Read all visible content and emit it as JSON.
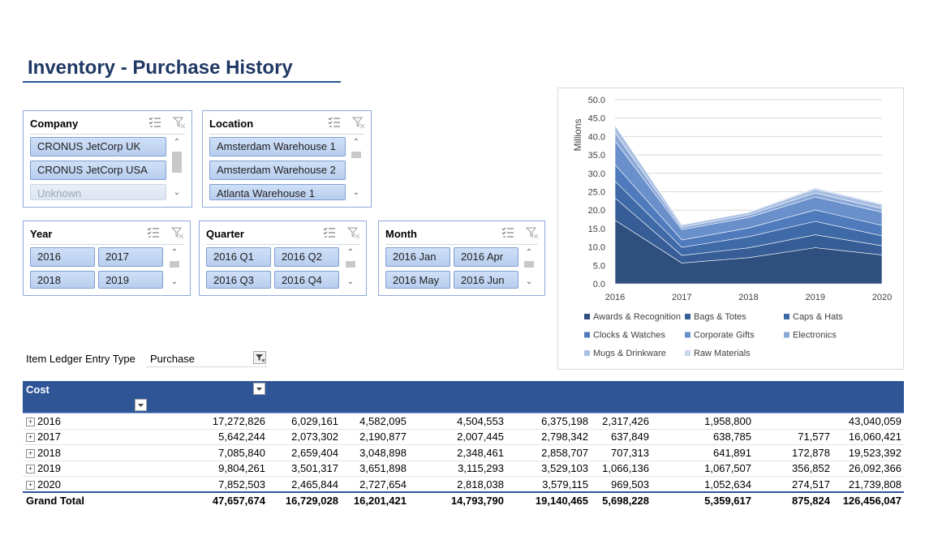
{
  "page_title": "Inventory - Purchase History",
  "slicers": {
    "company": {
      "title": "Company",
      "items": [
        "CRONUS JetCorp UK",
        "CRONUS JetCorp USA",
        "Unknown"
      ]
    },
    "location": {
      "title": "Location",
      "items": [
        "Amsterdam Warehouse 1",
        "Amsterdam Warehouse 2",
        "Atlanta Warehouse 1"
      ]
    },
    "year": {
      "title": "Year",
      "items": [
        "2016",
        "2017",
        "2018",
        "2019"
      ]
    },
    "quarter": {
      "title": "Quarter",
      "items": [
        "2016 Q1",
        "2016 Q2",
        "2016 Q3",
        "2016 Q4"
      ]
    },
    "month": {
      "title": "Month",
      "items": [
        "2016 Jan",
        "2016 Apr",
        "2016 May",
        "2016 Jun"
      ]
    }
  },
  "filter": {
    "label": "Item Ledger Entry Type",
    "value": "Purchase"
  },
  "pivot": {
    "header_label": "Cost",
    "columns": [
      "Awards & Recognition",
      "Bags & Totes",
      "Caps & Hats",
      "Clocks & Watches",
      "Corporate Gifts",
      "Electronics",
      "Mugs & Drinkware",
      "Raw Materials",
      "Grand Total"
    ],
    "rows": [
      {
        "label": "2016",
        "values": [
          "17,272,826",
          "6,029,161",
          "4,582,095",
          "4,504,553",
          "6,375,198",
          "2,317,426",
          "1,958,800",
          "",
          "43,040,059"
        ]
      },
      {
        "label": "2017",
        "values": [
          "5,642,244",
          "2,073,302",
          "2,190,877",
          "2,007,445",
          "2,798,342",
          "637,849",
          "638,785",
          "71,577",
          "16,060,421"
        ]
      },
      {
        "label": "2018",
        "values": [
          "7,085,840",
          "2,659,404",
          "3,048,898",
          "2,348,461",
          "2,858,707",
          "707,313",
          "641,891",
          "172,878",
          "19,523,392"
        ]
      },
      {
        "label": "2019",
        "values": [
          "9,804,261",
          "3,501,317",
          "3,651,898",
          "3,115,293",
          "3,529,103",
          "1,066,136",
          "1,067,507",
          "356,852",
          "26,092,366"
        ]
      },
      {
        "label": "2020",
        "values": [
          "7,852,503",
          "2,465,844",
          "2,727,654",
          "2,818,038",
          "3,579,115",
          "969,503",
          "1,052,634",
          "274,517",
          "21,739,808"
        ]
      }
    ],
    "grand_total": {
      "label": "Grand Total",
      "values": [
        "47,657,674",
        "16,729,028",
        "16,201,421",
        "14,793,790",
        "19,140,465",
        "5,698,228",
        "5,359,617",
        "875,824",
        "126,456,047"
      ]
    }
  },
  "chart_data": {
    "type": "area",
    "stacked": true,
    "x": [
      "2016",
      "2017",
      "2018",
      "2019",
      "2020"
    ],
    "ylabel": "Millions",
    "ylim": [
      0,
      50
    ],
    "yticks": [
      "0.0",
      "5.0",
      "10.0",
      "15.0",
      "20.0",
      "25.0",
      "30.0",
      "35.0",
      "40.0",
      "45.0",
      "50.0"
    ],
    "legend_position": "bottom",
    "grid": true,
    "series": [
      {
        "name": "Awards & Recognition",
        "color": "#2f4f7f",
        "values": [
          17.27,
          5.64,
          7.09,
          9.8,
          7.85
        ]
      },
      {
        "name": "Bags & Totes",
        "color": "#365d95",
        "values": [
          6.03,
          2.07,
          2.66,
          3.5,
          2.47
        ]
      },
      {
        "name": "Caps & Hats",
        "color": "#3f6aa8",
        "values": [
          4.58,
          2.19,
          3.05,
          3.65,
          2.73
        ]
      },
      {
        "name": "Clocks & Watches",
        "color": "#4f7bbd",
        "values": [
          4.5,
          2.01,
          2.35,
          3.12,
          2.82
        ]
      },
      {
        "name": "Corporate Gifts",
        "color": "#6a90cb",
        "values": [
          6.38,
          2.8,
          2.86,
          3.53,
          3.58
        ]
      },
      {
        "name": "Electronics",
        "color": "#8aa8d7",
        "values": [
          2.32,
          0.64,
          0.71,
          1.07,
          0.97
        ]
      },
      {
        "name": "Mugs & Drinkware",
        "color": "#a9bfe2",
        "values": [
          1.96,
          0.64,
          0.64,
          1.07,
          1.05
        ]
      },
      {
        "name": "Raw Materials",
        "color": "#c9d6ee",
        "values": [
          0.0,
          0.07,
          0.17,
          0.36,
          0.27
        ]
      }
    ]
  }
}
